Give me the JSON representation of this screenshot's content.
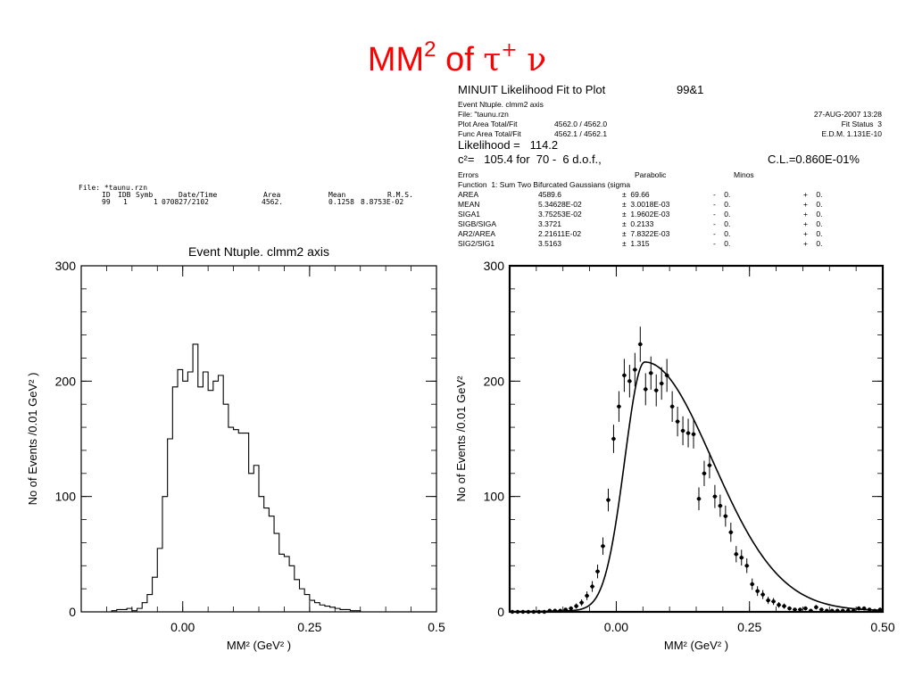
{
  "slide": {
    "title_main": "MM",
    "title_sup": "2",
    "title_of": "of",
    "title_tau": "τ",
    "title_tau_sup": "+",
    "title_nu": "ν"
  },
  "left_header": {
    "file_line": "File: *taunu.rzn",
    "col_id": "ID",
    "col_idb": "IDB",
    "col_symb": "Symb",
    "col_datetime": "Date/Time",
    "col_area": "Area",
    "col_mean": "Mean",
    "col_rms": "R.M.S.",
    "val_id": "99",
    "val_idb": "1",
    "val_symb": "1",
    "val_datetime": "070827/2102",
    "val_area": "4562.",
    "val_mean": "0.1258",
    "val_rms": "8.8753E-02"
  },
  "fit_box": {
    "title": "MINUIT Likelihood Fit to Plot",
    "plot_id": "99&1",
    "ntuple": "Event Ntuple. clmm2 axis",
    "file": "File: \"taunu.rzn",
    "date": "27-AUG-2007 13:28",
    "plot_area_label": "Plot Area Total/Fit",
    "plot_area_value": "4562.0 / 4562.0",
    "fit_status": "Fit Status  3",
    "func_area_label": "Func Area Total/Fit",
    "func_area_value": "4562.1 / 4562.1",
    "edm": "E.D.M. 1.131E-10",
    "likelihood": "Likelihood =   114.2",
    "chi2": "c²=   105.4 for  70 -  6 d.o.f.,",
    "cl": "C.L.=0.860E-01%",
    "errors_label": "Errors",
    "parabolic_label": "Parabolic",
    "minos_label": "Minos",
    "function_label": "Function  1: Sum Two Bifurcated Gaussians (sigma",
    "params": [
      {
        "name": "AREA",
        "value": "4589.6",
        "err": "±  69.66",
        "minos_neg": "-    0.",
        "minos_pos": "+    0."
      },
      {
        "name": "MEAN",
        "value": "5.34628E-02",
        "err": "±  3.0018E-03",
        "minos_neg": "-    0.",
        "minos_pos": "+    0."
      },
      {
        "name": "SIGA1",
        "value": "3.75253E-02",
        "err": "±  1.9602E-03",
        "minos_neg": "-    0.",
        "minos_pos": "+    0."
      },
      {
        "name": "SIGB/SIGA",
        "value": "3.3721",
        "err": "±  0.2133",
        "minos_neg": "-    0.",
        "minos_pos": "+    0."
      },
      {
        "name": "AR2/AREA",
        "value": "2.21611E-02",
        "err": "±  7.8322E-03",
        "minos_neg": "-    0.",
        "minos_pos": "+    0."
      },
      {
        "name": "SIG2/SIG1",
        "value": "3.5163",
        "err": "±  1.315",
        "minos_neg": "-    0.",
        "minos_pos": "+    0."
      }
    ]
  },
  "chart_data": [
    {
      "type": "histogram",
      "title": "Event Ntuple. clmm2 axis",
      "xlabel": "MM² (GeV² )",
      "ylabel": "No of Events /0.01 GeV² )",
      "xlim": [
        -0.2,
        0.5
      ],
      "ylim": [
        0,
        300
      ],
      "xticks": [
        0,
        0.25,
        0.5
      ],
      "xtick_labels": [
        "0.00",
        "0.25",
        "0.5"
      ],
      "yticks": [
        0,
        100,
        200,
        300
      ],
      "ytick_labels": [
        "0",
        "100",
        "200",
        "300"
      ],
      "bin_edges_start": -0.14,
      "bin_width": 0.01,
      "values": [
        1,
        2,
        2,
        3,
        1,
        3,
        8,
        15,
        30,
        55,
        100,
        150,
        195,
        210,
        200,
        208,
        232,
        195,
        208,
        192,
        200,
        205,
        180,
        160,
        158,
        155,
        155,
        120,
        127,
        100,
        90,
        83,
        68,
        50,
        48,
        40,
        28,
        20,
        15,
        10,
        8,
        6,
        5,
        4,
        3,
        2,
        2,
        1,
        1
      ]
    },
    {
      "type": "scatter",
      "title": "",
      "xlabel": "MM² (GeV² )",
      "ylabel": "No of Events /0.01 GeV²",
      "xlim": [
        -0.2,
        0.5
      ],
      "ylim": [
        0,
        300
      ],
      "xticks": [
        0,
        0.25,
        0.5
      ],
      "xtick_labels": [
        "0.00",
        "0.25",
        "0.50"
      ],
      "yticks": [
        0,
        100,
        200,
        300
      ],
      "ytick_labels": [
        "0",
        "100",
        "200",
        "300"
      ],
      "points": {
        "x": [
          -0.195,
          -0.185,
          -0.175,
          -0.165,
          -0.155,
          -0.145,
          -0.135,
          -0.125,
          -0.115,
          -0.105,
          -0.095,
          -0.085,
          -0.075,
          -0.065,
          -0.055,
          -0.045,
          -0.035,
          -0.025,
          -0.015,
          -0.005,
          0.005,
          0.015,
          0.025,
          0.035,
          0.045,
          0.055,
          0.065,
          0.075,
          0.085,
          0.095,
          0.105,
          0.115,
          0.125,
          0.135,
          0.145,
          0.155,
          0.165,
          0.175,
          0.185,
          0.195,
          0.205,
          0.215,
          0.225,
          0.235,
          0.245,
          0.255,
          0.265,
          0.275,
          0.285,
          0.295,
          0.305,
          0.315,
          0.325,
          0.335,
          0.345,
          0.355,
          0.365,
          0.375,
          0.385,
          0.395,
          0.405,
          0.415,
          0.425,
          0.435,
          0.445,
          0.455,
          0.465,
          0.475,
          0.485,
          0.495
        ],
        "y": [
          0,
          0,
          0,
          0,
          0,
          0,
          0,
          1,
          1,
          1,
          2,
          3,
          5,
          8,
          14,
          22,
          35,
          57,
          97,
          150,
          178,
          205,
          200,
          210,
          232,
          193,
          207,
          192,
          198,
          205,
          178,
          165,
          157,
          155,
          154,
          98,
          120,
          127,
          100,
          92,
          83,
          69,
          50,
          47,
          40,
          24,
          18,
          15,
          10,
          9,
          6,
          5,
          3,
          2,
          2,
          3,
          1,
          4,
          2,
          1,
          1,
          1,
          1,
          1,
          1,
          3,
          3,
          2,
          1,
          2
        ]
      },
      "fit_curve": {
        "function": "Sum Two Bifurcated Gaussians",
        "mean": 0.0534628,
        "siga1": 0.0375253,
        "sigb_over_siga": 3.3721,
        "ar2_over_area": 0.0221611,
        "sig2_over_sig1": 3.5163,
        "peak": 220
      }
    }
  ]
}
